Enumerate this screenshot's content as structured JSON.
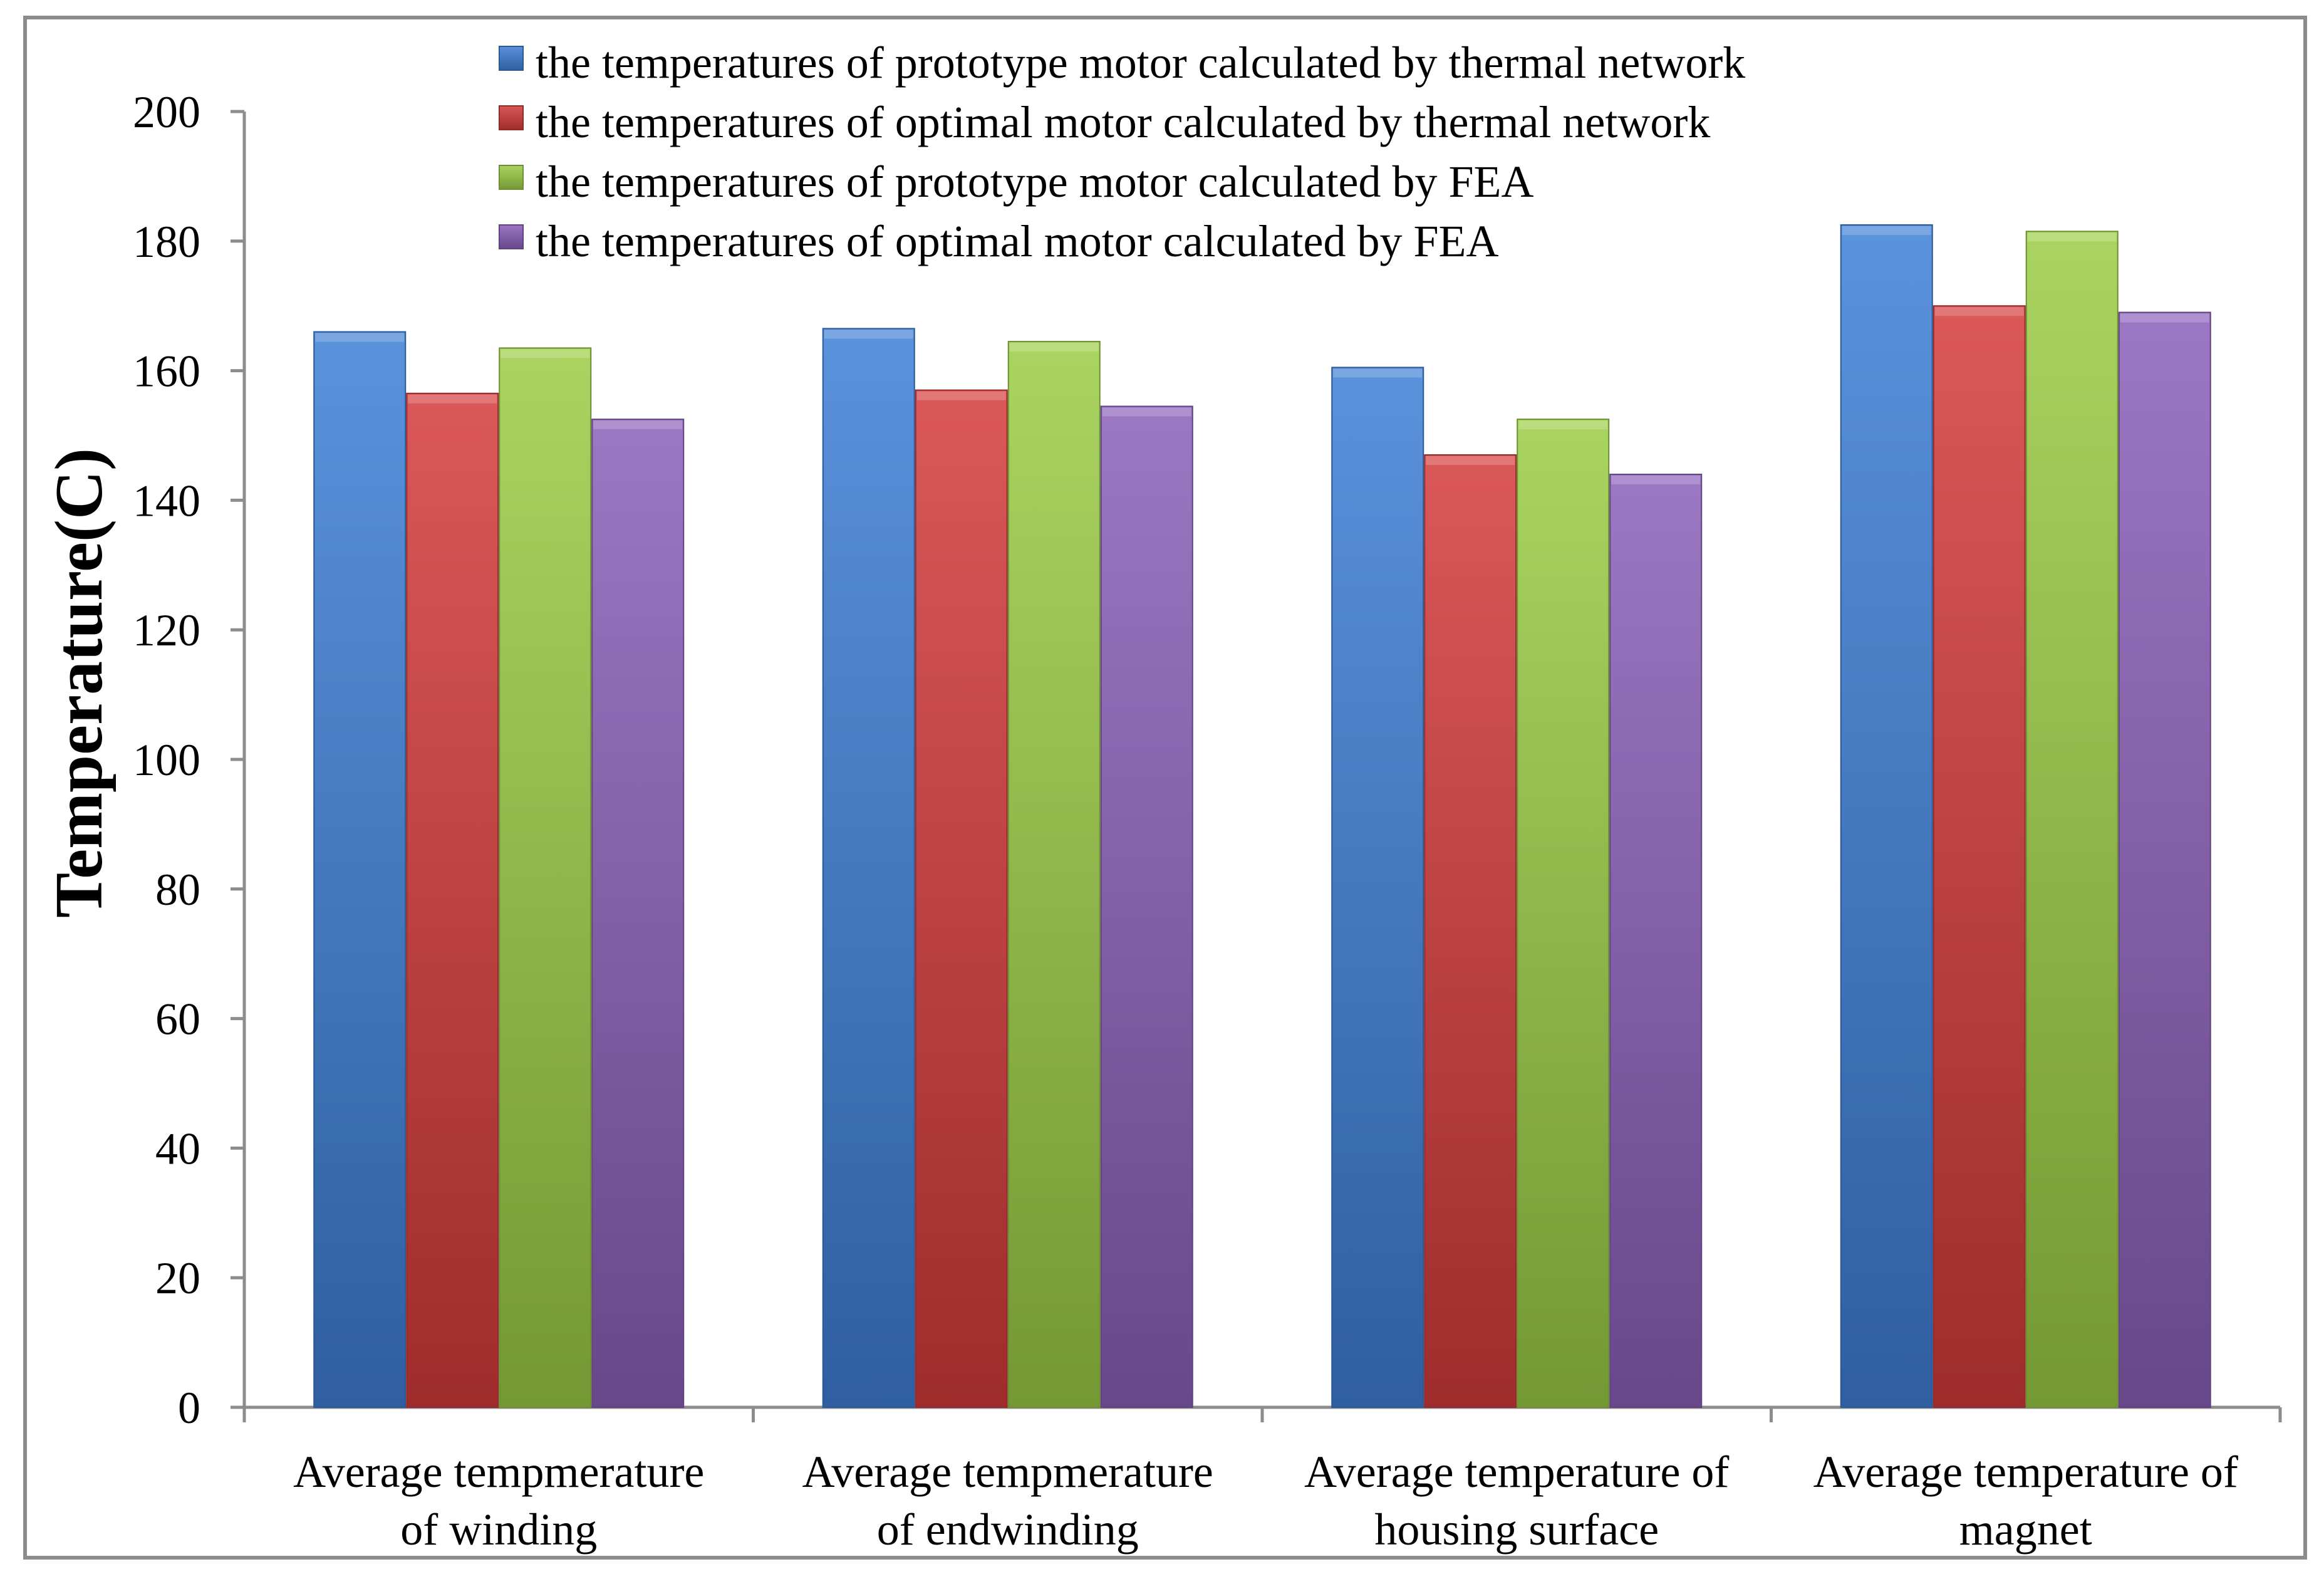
{
  "chart_data": {
    "type": "bar",
    "title": "",
    "xlabel": "",
    "ylabel": "Temperature(C)",
    "ylim": [
      0,
      200
    ],
    "yticks": [
      0,
      20,
      40,
      60,
      80,
      100,
      120,
      140,
      160,
      180,
      200
    ],
    "grid": false,
    "legend_position": "top",
    "categories": [
      [
        "Average tempmerature",
        "of winding"
      ],
      [
        "Average tempmerature",
        "of endwinding"
      ],
      [
        "Average temperature of",
        "housing surface"
      ],
      [
        "Average temperature of",
        "magnet"
      ]
    ],
    "series": [
      {
        "name": "the temperatures of prototype motor calculated by thermal network",
        "color": "#3e7fd6",
        "values": [
          166,
          166.5,
          160.5,
          182.5
        ]
      },
      {
        "name": "the temperatures of optimal motor calculated by thermal network",
        "color": "#d43a3a",
        "values": [
          156.5,
          157,
          147,
          170
        ]
      },
      {
        "name": "the temperatures of prototype motor calculated by FEA",
        "color": "#9bcc45",
        "values": [
          163.5,
          164.5,
          152.5,
          181.5
        ]
      },
      {
        "name": "the temperatures of optimal motor calculated by FEA",
        "color": "#8a5fb8",
        "values": [
          152.5,
          154.5,
          144,
          169
        ]
      }
    ]
  }
}
